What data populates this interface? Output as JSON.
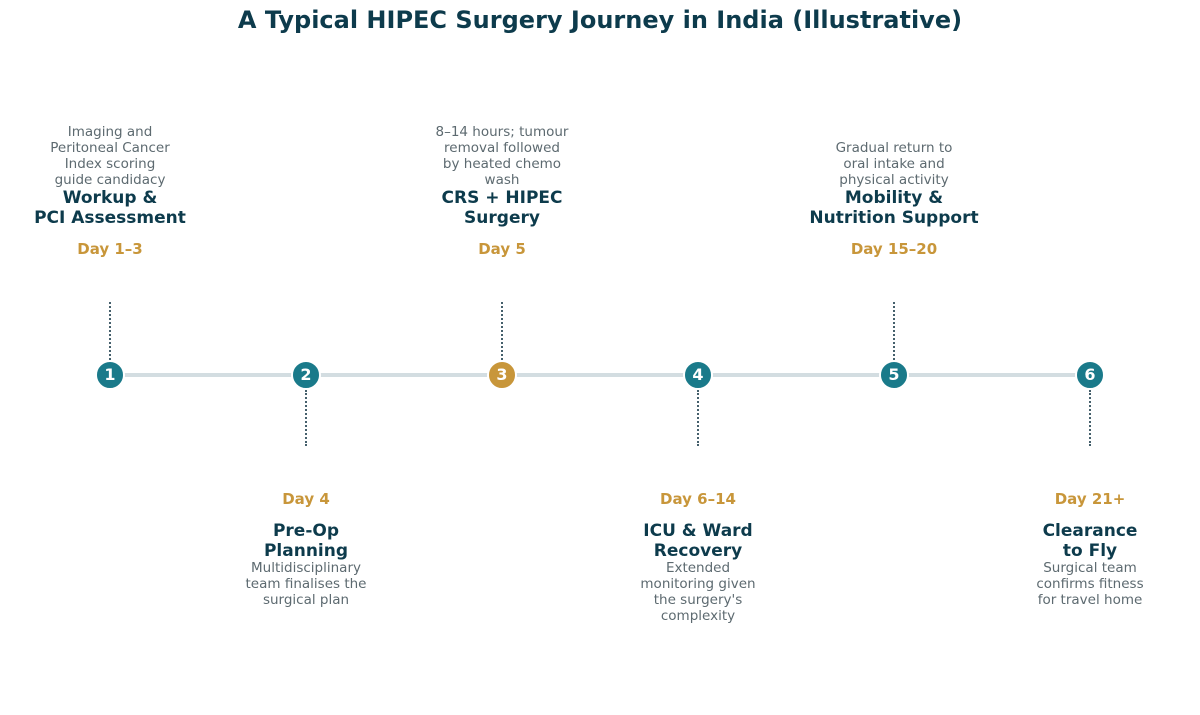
{
  "title": "A Typical HIPEC Surgery Journey in India (Illustrative)",
  "colors": {
    "node_default": "#1a7a8a",
    "node_highlight": "#c8963a",
    "axis": "#d3dde1",
    "day_label": "#c8963a",
    "step_title": "#0d3b4c",
    "step_desc": "#5d6a70"
  },
  "steps": [
    {
      "number": "1",
      "day": "Day 1–3",
      "title": "Workup &\nPCI Assessment",
      "description": "Imaging and\nPeritoneal Cancer\nIndex scoring\nguide candidacy",
      "position": "above",
      "highlight": false
    },
    {
      "number": "2",
      "day": "Day 4",
      "title": "Pre-Op\nPlanning",
      "description": "Multidisciplinary\nteam finalises the\nsurgical plan",
      "position": "below",
      "highlight": false
    },
    {
      "number": "3",
      "day": "Day 5",
      "title": "CRS + HIPEC\nSurgery",
      "description": "8–14 hours; tumour\nremoval followed\nby heated chemo\nwash",
      "position": "above",
      "highlight": true
    },
    {
      "number": "4",
      "day": "Day 6–14",
      "title": "ICU & Ward\nRecovery",
      "description": "Extended\nmonitoring given\nthe surgery's\ncomplexity",
      "position": "below",
      "highlight": false
    },
    {
      "number": "5",
      "day": "Day 15–20",
      "title": "Mobility &\nNutrition Support",
      "description": "Gradual return to\noral intake and\nphysical activity",
      "position": "above",
      "highlight": false
    },
    {
      "number": "6",
      "day": "Day 21+",
      "title": "Clearance\nto Fly",
      "description": "Surgical team\nconfirms fitness\nfor travel home",
      "position": "below",
      "highlight": false
    }
  ]
}
